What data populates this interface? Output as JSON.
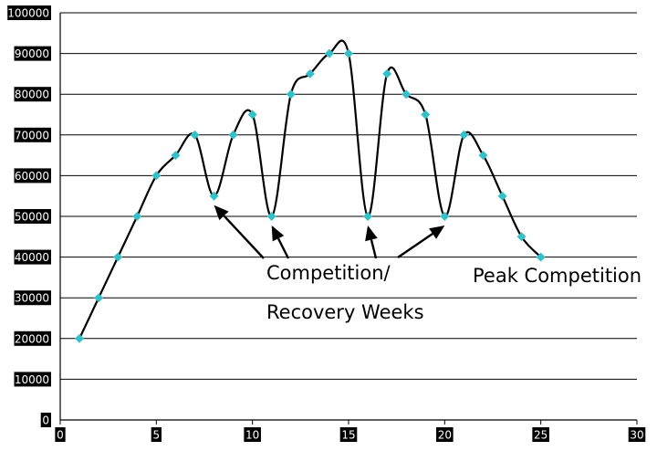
{
  "chart_data": {
    "type": "scatter",
    "title": "",
    "xlabel": "",
    "ylabel": "",
    "xlim": [
      0,
      30
    ],
    "ylim": [
      0,
      100000
    ],
    "x_ticks": [
      0,
      5,
      10,
      15,
      20,
      25,
      30
    ],
    "y_ticks": [
      0,
      10000,
      20000,
      30000,
      40000,
      50000,
      60000,
      70000,
      80000,
      90000,
      100000
    ],
    "grid": "horizontal",
    "smoothed_line": true,
    "series": [
      {
        "x": [
          1,
          2,
          3,
          4,
          5,
          6,
          7,
          8,
          9,
          10,
          11,
          12,
          13,
          14,
          15,
          16,
          17,
          18,
          19,
          20,
          21,
          22,
          23,
          24,
          25
        ],
        "values": [
          20000,
          30000,
          40000,
          50000,
          60000,
          65000,
          70000,
          55000,
          70000,
          75000,
          50000,
          80000,
          85000,
          90000,
          90000,
          50000,
          85000,
          80000,
          75000,
          50000,
          70000,
          65000,
          55000,
          45000,
          40000
        ],
        "marker": "diamond",
        "marker_color": "#35c0c8",
        "line_color": "#000000"
      }
    ],
    "annotations": [
      {
        "text": "Competition/",
        "arrow_targets": [
          8,
          11,
          16,
          20
        ]
      },
      {
        "text": "Recovery Weeks"
      },
      {
        "text": "Peak Competition"
      }
    ]
  }
}
